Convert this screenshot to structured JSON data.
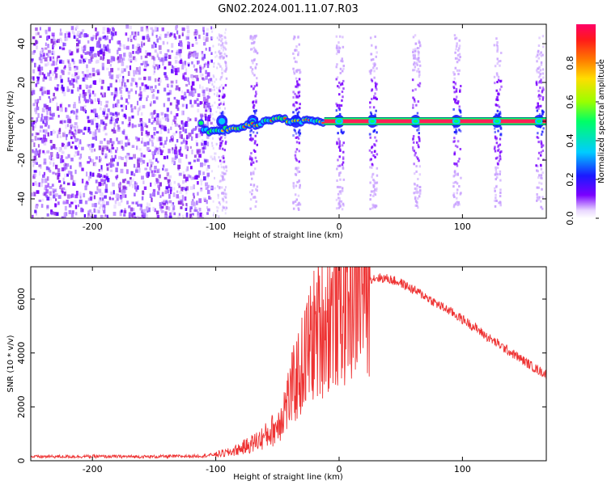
{
  "title": "GN02.2024.001.11.07.R03",
  "chart_data": [
    {
      "type": "heatmap",
      "xlabel": "Height of straight line (km)",
      "ylabel": "Frequency (Hz)",
      "xlim": [
        -250,
        168
      ],
      "ylim": [
        -50,
        50
      ],
      "xticks": [
        -200,
        -100,
        0,
        100
      ],
      "yticks": [
        -40,
        -20,
        0,
        20,
        40
      ],
      "colorbar": {
        "label": "Normalized spectral amplitude",
        "range": [
          0,
          1
        ],
        "ticks": [
          "0.0",
          "0.2",
          "0.4",
          "0.6",
          "0.8"
        ],
        "colormap": "rainbow (violet to red)"
      },
      "signal_track": [
        {
          "x": -110,
          "y": -5
        },
        {
          "x": -90,
          "y": -4
        },
        {
          "x": -70,
          "y": -2
        },
        {
          "x": -50,
          "y": 1
        },
        {
          "x": -30,
          "y": 0
        },
        {
          "x": -10,
          "y": 0
        },
        {
          "x": 168,
          "y": 0
        }
      ],
      "periodic_bursts_x": [
        -95,
        -70,
        -35,
        0,
        27,
        62,
        95,
        128,
        162
      ],
      "noise_region": [
        -250,
        -100
      ]
    },
    {
      "type": "line",
      "xlabel": "Height of straight line (km)",
      "ylabel": "SNR (10 * v/v)",
      "xlim": [
        -250,
        168
      ],
      "ylim": [
        0,
        7200
      ],
      "xticks": [
        -200,
        -100,
        0,
        100
      ],
      "yticks": [
        0,
        2000,
        4000,
        6000
      ],
      "color": "#ee3333",
      "envelope": [
        {
          "x": -250,
          "y": 150
        },
        {
          "x": -200,
          "y": 160
        },
        {
          "x": -150,
          "y": 150
        },
        {
          "x": -110,
          "y": 180
        },
        {
          "x": -90,
          "y": 300
        },
        {
          "x": -80,
          "y": 450
        },
        {
          "x": -70,
          "y": 650
        },
        {
          "x": -60,
          "y": 900
        },
        {
          "x": -50,
          "y": 1300
        },
        {
          "x": -45,
          "y": 1900
        },
        {
          "x": -40,
          "y": 2400
        },
        {
          "x": -35,
          "y": 3000
        },
        {
          "x": -30,
          "y": 3500
        },
        {
          "x": -25,
          "y": 4200
        },
        {
          "x": -20,
          "y": 4700
        },
        {
          "x": -15,
          "y": 5000
        },
        {
          "x": -10,
          "y": 5300
        },
        {
          "x": -5,
          "y": 5600
        },
        {
          "x": 0,
          "y": 5800
        },
        {
          "x": 5,
          "y": 6000
        },
        {
          "x": 10,
          "y": 6300
        },
        {
          "x": 20,
          "y": 6700
        },
        {
          "x": 30,
          "y": 6800
        },
        {
          "x": 40,
          "y": 6750
        },
        {
          "x": 50,
          "y": 6600
        },
        {
          "x": 60,
          "y": 6350
        },
        {
          "x": 70,
          "y": 6100
        },
        {
          "x": 80,
          "y": 5800
        },
        {
          "x": 90,
          "y": 5550
        },
        {
          "x": 100,
          "y": 5250
        },
        {
          "x": 110,
          "y": 4950
        },
        {
          "x": 120,
          "y": 4600
        },
        {
          "x": 130,
          "y": 4300
        },
        {
          "x": 140,
          "y": 4000
        },
        {
          "x": 150,
          "y": 3700
        },
        {
          "x": 160,
          "y": 3400
        },
        {
          "x": 168,
          "y": 3200
        }
      ]
    }
  ]
}
